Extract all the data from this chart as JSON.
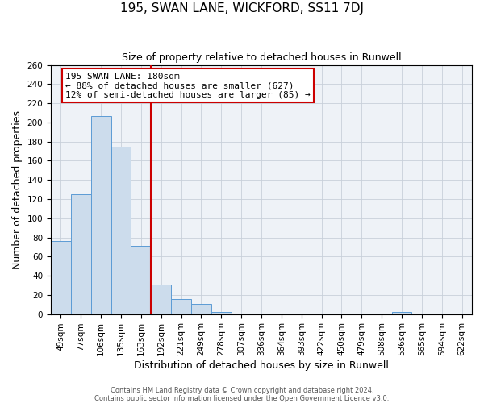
{
  "title": "195, SWAN LANE, WICKFORD, SS11 7DJ",
  "subtitle": "Size of property relative to detached houses in Runwell",
  "xlabel": "Distribution of detached houses by size in Runwell",
  "ylabel": "Number of detached properties",
  "bar_labels": [
    "49sqm",
    "77sqm",
    "106sqm",
    "135sqm",
    "163sqm",
    "192sqm",
    "221sqm",
    "249sqm",
    "278sqm",
    "307sqm",
    "336sqm",
    "364sqm",
    "393sqm",
    "422sqm",
    "450sqm",
    "479sqm",
    "508sqm",
    "536sqm",
    "565sqm",
    "594sqm",
    "622sqm"
  ],
  "bar_values": [
    76,
    125,
    207,
    175,
    71,
    31,
    16,
    11,
    2,
    0,
    0,
    0,
    0,
    0,
    0,
    0,
    0,
    2,
    0,
    0,
    0
  ],
  "bar_width": 1.0,
  "bar_color": "#ccdcec",
  "bar_edge_color": "#5b9bd5",
  "vline_x_index": 4,
  "vline_color": "#cc0000",
  "ylim": [
    0,
    260
  ],
  "yticks": [
    0,
    20,
    40,
    60,
    80,
    100,
    120,
    140,
    160,
    180,
    200,
    220,
    240,
    260
  ],
  "annotation_title": "195 SWAN LANE: 180sqm",
  "annotation_line1": "← 88% of detached houses are smaller (627)",
  "annotation_line2": "12% of semi-detached houses are larger (85) →",
  "annotation_box_color": "#cc0000",
  "footer1": "Contains HM Land Registry data © Crown copyright and database right 2024.",
  "footer2": "Contains public sector information licensed under the Open Government Licence v3.0.",
  "background_color": "#ffffff",
  "plot_bg_color": "#eef2f7",
  "grid_color": "#c8d0da",
  "title_fontsize": 11,
  "subtitle_fontsize": 9,
  "axis_label_fontsize": 9,
  "tick_fontsize": 7.5,
  "annotation_fontsize": 8
}
